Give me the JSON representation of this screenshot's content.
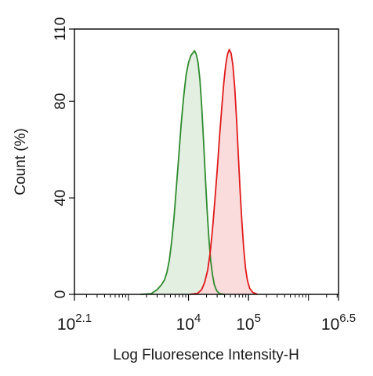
{
  "chart_data": {
    "type": "area",
    "title": "",
    "xlabel": "Log Fluoresence Intensity-H",
    "ylabel": "Count  (%)",
    "x_scale": "log10",
    "xlim_log10": [
      2.1,
      6.5
    ],
    "ylim": [
      0,
      110
    ],
    "y_ticks": [
      0,
      40,
      80,
      110
    ],
    "x_ticks": [
      {
        "base": "10",
        "exp": "2.1",
        "log10": 2.1
      },
      {
        "base": "10",
        "exp": "4",
        "log10": 4
      },
      {
        "base": "10",
        "exp": "5",
        "log10": 5
      },
      {
        "base": "10",
        "exp": "6.5",
        "log10": 6.5
      }
    ],
    "grid": false,
    "legend": "none",
    "series": [
      {
        "color": "#2e8b2e",
        "fill": "#e3efe1",
        "points": [
          [
            3.2,
            0
          ],
          [
            3.38,
            0.3
          ],
          [
            3.48,
            2
          ],
          [
            3.55,
            4
          ],
          [
            3.6,
            6
          ],
          [
            3.64,
            9
          ],
          [
            3.68,
            14
          ],
          [
            3.72,
            22
          ],
          [
            3.76,
            32
          ],
          [
            3.8,
            45
          ],
          [
            3.84,
            58
          ],
          [
            3.88,
            71
          ],
          [
            3.92,
            82
          ],
          [
            3.96,
            91
          ],
          [
            4.0,
            96
          ],
          [
            4.04,
            99
          ],
          [
            4.07,
            100
          ],
          [
            4.1,
            101
          ],
          [
            4.13,
            99.5
          ],
          [
            4.16,
            96
          ],
          [
            4.19,
            89
          ],
          [
            4.22,
            78
          ],
          [
            4.25,
            64
          ],
          [
            4.28,
            49
          ],
          [
            4.31,
            35
          ],
          [
            4.34,
            23
          ],
          [
            4.37,
            14
          ],
          [
            4.4,
            8
          ],
          [
            4.43,
            4
          ],
          [
            4.47,
            1.5
          ],
          [
            4.52,
            0.3
          ],
          [
            4.6,
            0
          ]
        ]
      },
      {
        "color": "#e01a1a",
        "fill": "#fadcdc",
        "points": [
          [
            4.02,
            0
          ],
          [
            4.15,
            0.4
          ],
          [
            4.22,
            2
          ],
          [
            4.27,
            5
          ],
          [
            4.32,
            10
          ],
          [
            4.36,
            17
          ],
          [
            4.4,
            27
          ],
          [
            4.44,
            39
          ],
          [
            4.48,
            52
          ],
          [
            4.52,
            66
          ],
          [
            4.56,
            79
          ],
          [
            4.59,
            88
          ],
          [
            4.62,
            95
          ],
          [
            4.65,
            99.5
          ],
          [
            4.68,
            101.5
          ],
          [
            4.71,
            100
          ],
          [
            4.74,
            95
          ],
          [
            4.77,
            86
          ],
          [
            4.8,
            73
          ],
          [
            4.83,
            58
          ],
          [
            4.86,
            43
          ],
          [
            4.89,
            30
          ],
          [
            4.92,
            19
          ],
          [
            4.95,
            11
          ],
          [
            4.98,
            6
          ],
          [
            5.02,
            2.5
          ],
          [
            5.07,
            0.8
          ],
          [
            5.15,
            0
          ]
        ]
      }
    ]
  }
}
